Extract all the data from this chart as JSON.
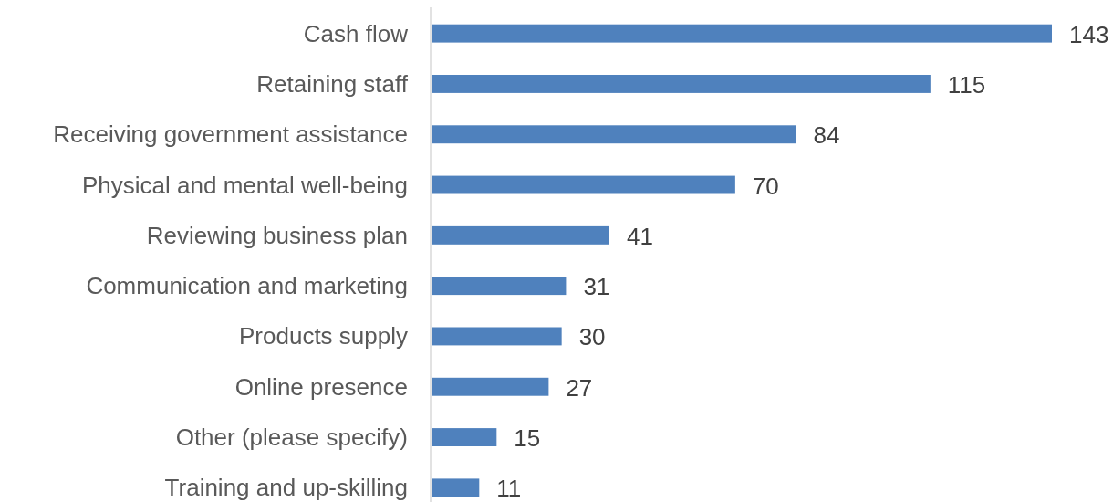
{
  "chart_data": {
    "type": "bar",
    "orientation": "horizontal",
    "categories": [
      "Cash flow",
      "Retaining staff",
      "Receiving government assistance",
      "Physical and mental well-being",
      "Reviewing business plan",
      "Communication and marketing",
      "Products supply",
      "Online presence",
      "Other (please specify)",
      "Training and up-skilling"
    ],
    "values": [
      143,
      115,
      84,
      70,
      41,
      31,
      30,
      27,
      15,
      11
    ],
    "color": "#4f81bd",
    "data_labels": true
  }
}
